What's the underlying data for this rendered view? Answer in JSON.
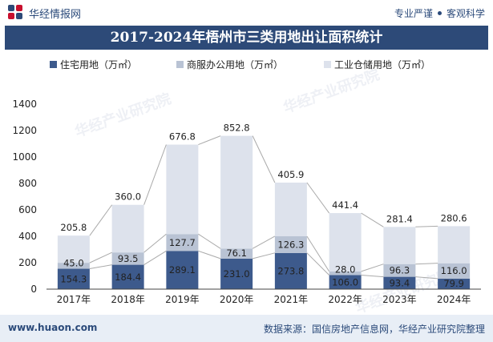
{
  "header": {
    "brand": "华经情报网",
    "tagline_left": "专业严谨",
    "tagline_right": "客观科学"
  },
  "watermarks": [
    "华经产业研究院",
    "华经产业研究院",
    "华经产业研究院"
  ],
  "footer": {
    "website": "www.huaon.com",
    "source": "数据来源：国信房地产信息网，华经产业研究院整理"
  },
  "colors": {
    "residential": "#3d5a8c",
    "commercial": "#b9c3d4",
    "industrial": "#dde2ec",
    "title_bg": "#2d4a78",
    "line": "#aaaaaa"
  },
  "chart_data": {
    "type": "bar",
    "stacked": true,
    "title": "2017-2024年梧州市三类用地出让面积统计",
    "categories": [
      "2017年",
      "2018年",
      "2019年",
      "2020年",
      "2021年",
      "2022年",
      "2023年",
      "2024年"
    ],
    "series": [
      {
        "name": "住宅用地（万㎡）",
        "values": [
          154.3,
          184.4,
          289.1,
          231.0,
          273.8,
          106.0,
          93.4,
          79.9
        ]
      },
      {
        "name": "商服办公用地（万㎡）",
        "values": [
          45.0,
          93.5,
          127.7,
          76.1,
          126.3,
          28.0,
          96.3,
          116.0
        ]
      },
      {
        "name": "工业仓储用地（万㎡）",
        "values": [
          205.8,
          360.0,
          676.8,
          852.8,
          405.9,
          441.4,
          281.4,
          280.6
        ]
      }
    ],
    "labels": {
      "residential": [
        "154.3",
        "184.4",
        "289.1",
        "231.0",
        "273.8",
        "106.0",
        "93.4",
        "79.9"
      ],
      "commercial": [
        "45.0",
        "93.5",
        "127.7",
        "76.1",
        "126.3",
        "28.0",
        "96.3",
        "116.0"
      ],
      "industrial": [
        "205.8",
        "360.0",
        "676.8",
        "852.8",
        "405.9",
        "441.4",
        "281.4",
        "280.6"
      ]
    },
    "yticks": [
      "0",
      "200",
      "400",
      "600",
      "800",
      "1000",
      "1200",
      "1400"
    ],
    "ylim": [
      0,
      1400
    ],
    "connector_lines": true,
    "grid": false,
    "legend_position": "top"
  }
}
